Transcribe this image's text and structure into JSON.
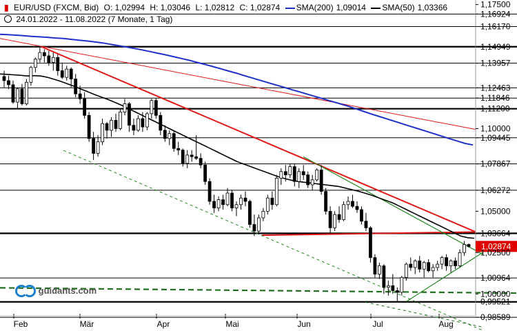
{
  "header": {
    "symbol_icon": "bar-chart-icon",
    "symbol": "EUR/USD (FXCM, Bid)",
    "open": "O: 1,02994",
    "high": "H: 1,03046",
    "low": "L: 1,02812",
    "close": "C: 1,02874",
    "sma200_label": "SMA(200)",
    "sma200_value": "1,09014",
    "sma50_label": "SMA(50)",
    "sma50_value": "1,03366",
    "period": "24.01.2022 - 11.08.2022",
    "interval": "(7 Monate, 1 Tag)"
  },
  "logo": {
    "text": "guidants.com",
    "icon": "guidants-logo-icon"
  },
  "chart_data": {
    "type": "candlestick",
    "instrument": "EUR/USD",
    "x_months": [
      "Feb",
      "Mär",
      "Apr",
      "Mai",
      "Jun",
      "Jul",
      "Aug"
    ],
    "price_axis": [
      "1,17500",
      "1,16924",
      "1,16170",
      "1,14949",
      "1,13957",
      "1,12463",
      "1,11846",
      "1,11200",
      "1,10000",
      "1,09445",
      "1,07867",
      "1,06272",
      "1,05000",
      "1,03664",
      "1,02874",
      "1,02500",
      "1,00964",
      "1,00000",
      "0,99521",
      "0,98589"
    ],
    "ylim": [
      0.982,
      1.178
    ],
    "last_price": "1,02874",
    "horizontal_levels": [
      1.16924,
      1.1617,
      1.14949,
      1.13957,
      1.12463,
      1.11846,
      1.112,
      1.09445,
      1.07867,
      1.06272,
      1.03664,
      1.00964,
      0.99521,
      0.98589
    ],
    "colors": {
      "up_candle": "#ffffff",
      "down_candle": "#000000",
      "sma200": "#1f2fcc",
      "sma50": "#000000",
      "trendline": "#e01818",
      "channel": "#1f8a1f",
      "support_dashed": "#1f6f1f",
      "last_price_box": "#e00000"
    },
    "candles": [
      [
        1.1315,
        1.135,
        1.125,
        1.129
      ],
      [
        1.129,
        1.132,
        1.124,
        1.1265
      ],
      [
        1.1265,
        1.129,
        1.115,
        1.116
      ],
      [
        1.116,
        1.125,
        1.112,
        1.124
      ],
      [
        1.124,
        1.127,
        1.114,
        1.115
      ],
      [
        1.115,
        1.13,
        1.114,
        1.128
      ],
      [
        1.128,
        1.138,
        1.126,
        1.137
      ],
      [
        1.137,
        1.143,
        1.134,
        1.142
      ],
      [
        1.142,
        1.149,
        1.14,
        1.146
      ],
      [
        1.146,
        1.148,
        1.14,
        1.144
      ],
      [
        1.144,
        1.147,
        1.138,
        1.14
      ],
      [
        1.14,
        1.146,
        1.135,
        1.143
      ],
      [
        1.143,
        1.145,
        1.132,
        1.135
      ],
      [
        1.135,
        1.14,
        1.13,
        1.131
      ],
      [
        1.131,
        1.138,
        1.129,
        1.136
      ],
      [
        1.136,
        1.137,
        1.125,
        1.13
      ],
      [
        1.13,
        1.133,
        1.119,
        1.121
      ],
      [
        1.121,
        1.126,
        1.115,
        1.118
      ],
      [
        1.118,
        1.122,
        1.106,
        1.108
      ],
      [
        1.108,
        1.11,
        1.092,
        1.094
      ],
      [
        1.094,
        1.098,
        1.081,
        1.085
      ],
      [
        1.085,
        1.096,
        1.083,
        1.092
      ],
      [
        1.092,
        1.106,
        1.09,
        1.103
      ],
      [
        1.103,
        1.104,
        1.094,
        1.099
      ],
      [
        1.099,
        1.107,
        1.095,
        1.105
      ],
      [
        1.105,
        1.109,
        1.098,
        1.1
      ],
      [
        1.1,
        1.112,
        1.099,
        1.11
      ],
      [
        1.11,
        1.118,
        1.108,
        1.115
      ],
      [
        1.115,
        1.116,
        1.098,
        1.102
      ],
      [
        1.102,
        1.106,
        1.096,
        1.099
      ],
      [
        1.099,
        1.108,
        1.098,
        1.106
      ],
      [
        1.106,
        1.11,
        1.098,
        1.101
      ],
      [
        1.101,
        1.11,
        1.099,
        1.109
      ],
      [
        1.109,
        1.118,
        1.106,
        1.117
      ],
      [
        1.117,
        1.1185,
        1.106,
        1.108
      ],
      [
        1.108,
        1.11,
        1.096,
        1.099
      ],
      [
        1.099,
        1.102,
        1.092,
        1.094
      ],
      [
        1.094,
        1.099,
        1.09,
        1.097
      ],
      [
        1.097,
        1.099,
        1.086,
        1.088
      ],
      [
        1.088,
        1.092,
        1.084,
        1.087
      ],
      [
        1.087,
        1.088,
        1.077,
        1.079
      ],
      [
        1.079,
        1.087,
        1.076,
        1.084
      ],
      [
        1.084,
        1.087,
        1.08,
        1.083
      ],
      [
        1.083,
        1.096,
        1.081,
        1.082
      ],
      [
        1.082,
        1.085,
        1.076,
        1.078
      ],
      [
        1.078,
        1.08,
        1.066,
        1.068
      ],
      [
        1.068,
        1.07,
        1.054,
        1.056
      ],
      [
        1.056,
        1.06,
        1.049,
        1.052
      ],
      [
        1.052,
        1.059,
        1.05,
        1.057
      ],
      [
        1.057,
        1.06,
        1.051,
        1.054
      ],
      [
        1.054,
        1.064,
        1.053,
        1.061
      ],
      [
        1.061,
        1.063,
        1.05,
        1.052
      ],
      [
        1.052,
        1.056,
        1.047,
        1.054
      ],
      [
        1.054,
        1.06,
        1.051,
        1.058
      ],
      [
        1.058,
        1.062,
        1.053,
        1.056
      ],
      [
        1.056,
        1.057,
        1.04,
        1.042
      ],
      [
        1.042,
        1.048,
        1.035,
        1.038
      ],
      [
        1.038,
        1.048,
        1.036,
        1.046
      ],
      [
        1.046,
        1.052,
        1.044,
        1.05
      ],
      [
        1.05,
        1.06,
        1.048,
        1.058
      ],
      [
        1.058,
        1.062,
        1.051,
        1.054
      ],
      [
        1.054,
        1.072,
        1.053,
        1.07
      ],
      [
        1.07,
        1.076,
        1.066,
        1.074
      ],
      [
        1.074,
        1.078,
        1.068,
        1.072
      ],
      [
        1.072,
        1.079,
        1.07,
        1.077
      ],
      [
        1.077,
        1.079,
        1.065,
        1.068
      ],
      [
        1.068,
        1.076,
        1.064,
        1.074
      ],
      [
        1.074,
        1.078,
        1.069,
        1.072
      ],
      [
        1.072,
        1.074,
        1.064,
        1.066
      ],
      [
        1.066,
        1.072,
        1.063,
        1.069
      ],
      [
        1.069,
        1.076,
        1.068,
        1.075
      ],
      [
        1.075,
        1.078,
        1.06,
        1.062
      ],
      [
        1.062,
        1.064,
        1.048,
        1.05
      ],
      [
        1.05,
        1.053,
        1.037,
        1.04
      ],
      [
        1.04,
        1.05,
        1.038,
        1.048
      ],
      [
        1.048,
        1.053,
        1.043,
        1.045
      ],
      [
        1.045,
        1.056,
        1.044,
        1.054
      ],
      [
        1.054,
        1.059,
        1.051,
        1.056
      ],
      [
        1.056,
        1.06,
        1.052,
        1.053
      ],
      [
        1.053,
        1.056,
        1.049,
        1.051
      ],
      [
        1.051,
        1.053,
        1.042,
        1.044
      ],
      [
        1.044,
        1.049,
        1.038,
        1.04
      ],
      [
        1.04,
        1.041,
        1.019,
        1.022
      ],
      [
        1.022,
        1.024,
        1.01,
        1.012
      ],
      [
        1.012,
        1.019,
        1.009,
        1.017
      ],
      [
        1.017,
        1.018,
        1.0,
        1.004
      ],
      [
        1.004,
        1.008,
        0.999,
        1.005
      ],
      [
        1.005,
        1.012,
        1.0,
        1.002
      ],
      [
        1.002,
        1.004,
        0.9952,
        1.001
      ],
      [
        1.001,
        1.011,
        0.999,
        1.01
      ],
      [
        1.01,
        1.019,
        1.008,
        1.018
      ],
      [
        1.018,
        1.022,
        1.014,
        1.016
      ],
      [
        1.016,
        1.021,
        1.012,
        1.02
      ],
      [
        1.02,
        1.023,
        1.013,
        1.015
      ],
      [
        1.015,
        1.02,
        1.01,
        1.019
      ],
      [
        1.019,
        1.021,
        1.013,
        1.014
      ],
      [
        1.014,
        1.018,
        1.01,
        1.016
      ],
      [
        1.016,
        1.02,
        1.014,
        1.018
      ],
      [
        1.018,
        1.023,
        1.015,
        1.022
      ],
      [
        1.022,
        1.024,
        1.014,
        1.017
      ],
      [
        1.017,
        1.021,
        1.013,
        1.02
      ],
      [
        1.02,
        1.022,
        1.015,
        1.017
      ],
      [
        1.017,
        1.027,
        1.016,
        1.025
      ],
      [
        1.025,
        1.032,
        1.023,
        1.0299
      ],
      [
        1.0299,
        1.0305,
        1.0281,
        1.0287
      ]
    ],
    "sma50": [
      1.133,
      1.1328,
      1.1325,
      1.1322,
      1.1318,
      1.132,
      1.1318,
      1.131,
      1.1298,
      1.1285,
      1.127,
      1.1255,
      1.1238,
      1.1222,
      1.1205,
      1.119,
      1.1175,
      1.1158,
      1.114,
      1.112,
      1.11,
      1.108,
      1.106,
      1.104,
      1.102,
      1.1,
      1.098,
      1.096,
      1.094,
      1.092,
      1.09,
      1.088,
      1.086,
      1.084,
      1.082,
      1.08,
      1.0785,
      1.077,
      1.0755,
      1.074,
      1.0725,
      1.071,
      1.0698,
      1.0688,
      1.068,
      1.0675,
      1.067,
      1.0665,
      1.066,
      1.0655,
      1.065,
      1.064,
      1.063,
      1.062,
      1.0608,
      1.0595,
      1.058,
      1.0565,
      1.055,
      1.053,
      1.051,
      1.049,
      1.047,
      1.045,
      1.043,
      1.041,
      1.039,
      1.037,
      1.035,
      1.034,
      1.0337
    ],
    "sma200": [
      1.157,
      1.1568,
      1.1565,
      1.1562,
      1.1558,
      1.1555,
      1.1552,
      1.1548,
      1.1545,
      1.154,
      1.1535,
      1.153,
      1.1524,
      1.1518,
      1.151,
      1.1502,
      1.1494,
      1.1485,
      1.1476,
      1.1466,
      1.1456,
      1.1446,
      1.1435,
      1.1424,
      1.1413,
      1.14,
      1.1388,
      1.1375,
      1.1362,
      1.1348,
      1.1335,
      1.132,
      1.1306,
      1.1292,
      1.1278,
      1.1264,
      1.125,
      1.1236,
      1.1222,
      1.1208,
      1.1194,
      1.118,
      1.1166,
      1.1152,
      1.1138,
      1.1122,
      1.1106,
      1.109,
      1.1075,
      1.106,
      1.1045,
      1.103,
      1.1015,
      1.1,
      1.0985,
      1.097,
      1.0955,
      1.094,
      1.0925,
      1.091,
      1.0901
    ]
  }
}
